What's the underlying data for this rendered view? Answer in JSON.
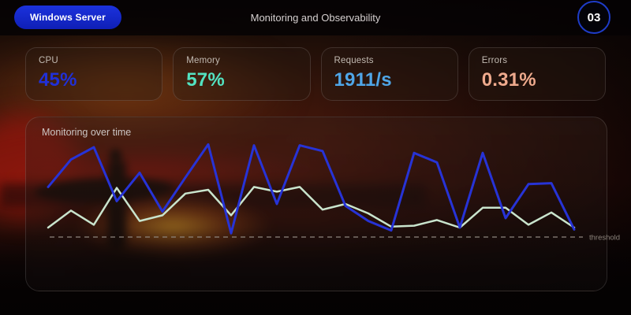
{
  "topbar": {
    "server_button_label": "Windows Server",
    "title": "Monitoring and Observability",
    "slide_badge": "03"
  },
  "cards": [
    {
      "label": "CPU",
      "value": "45%",
      "color": "#2030d8"
    },
    {
      "label": "Memory",
      "value": "57%",
      "color": "#53e3c1"
    },
    {
      "label": "Requests",
      "value": "1911/s",
      "color": "#4fa6e8"
    },
    {
      "label": "Errors",
      "value": "0.31%",
      "color": "#efaa8d"
    }
  ],
  "chart_panel": {
    "title": "Monitoring over time",
    "threshold_label": "threshold"
  },
  "chart_data": {
    "type": "line",
    "title": "Monitoring over time",
    "x_count": 24,
    "ylim": [
      0,
      100
    ],
    "grid": false,
    "legend": "none",
    "threshold_value": 0,
    "threshold_color": "#8d847c",
    "series": [
      {
        "name": "blue-series",
        "color": "#2733d6",
        "stroke_width": 3,
        "values": [
          53,
          82,
          95,
          38,
          68,
          27,
          63,
          98,
          4,
          97,
          35,
          97,
          91,
          33,
          17,
          7,
          89,
          79,
          10,
          89,
          20,
          56,
          57,
          8
        ]
      },
      {
        "name": "green-series",
        "color": "#c9e4cd",
        "stroke_width": 2.5,
        "values": [
          10,
          28,
          13,
          52,
          17,
          23,
          46,
          50,
          23,
          53,
          48,
          53,
          29,
          35,
          25,
          11,
          12,
          18,
          10,
          31,
          31,
          13,
          26,
          10
        ]
      }
    ]
  },
  "colors": {
    "pill_bg": "#1527cd",
    "badge_border": "#1e3cc8"
  }
}
